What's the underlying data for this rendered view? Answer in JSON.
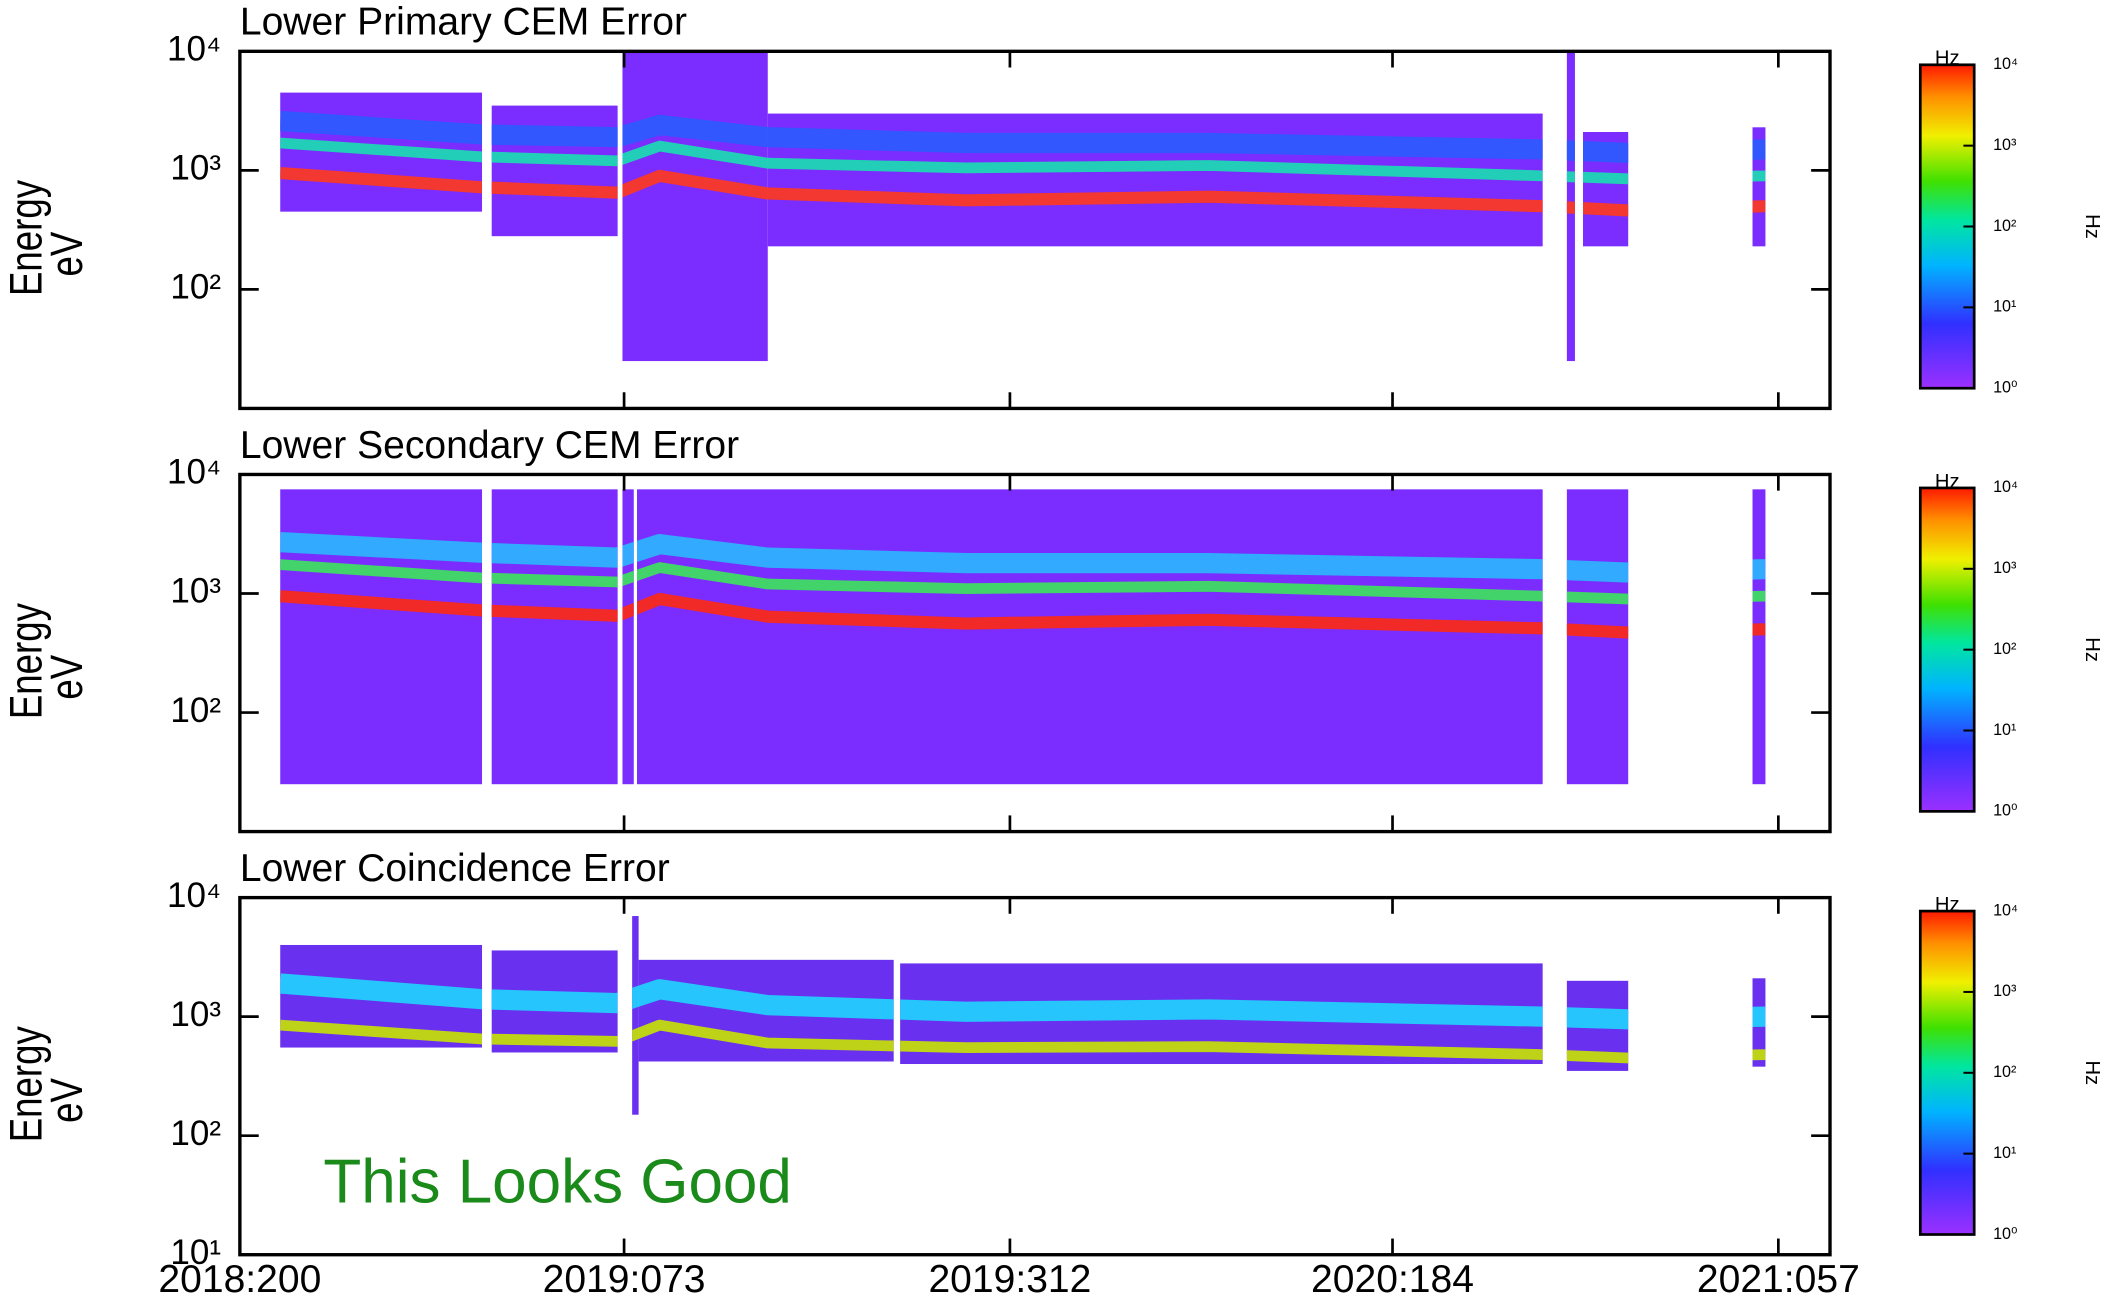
{
  "chart_data": [
    {
      "type": "spectrogram",
      "title": "Lower Primary CEM Error",
      "ylabel": "Energy",
      "yunit": "eV",
      "log_y": true,
      "xlim": [
        0,
        985
      ],
      "ylim": [
        10,
        10000
      ],
      "xticks": [
        0,
        238,
        477,
        714,
        953
      ],
      "yticks": [
        {
          "value": 100,
          "label": "10²"
        },
        {
          "value": 1000,
          "label": "10³"
        },
        {
          "value": 10000,
          "label": "10⁴"
        }
      ],
      "fill_color": "#7b2cff",
      "segments": [
        [
          25,
          150,
          450,
          4500
        ],
        [
          156,
          234,
          280,
          3500
        ],
        [
          237,
          327,
          25,
          10000
        ],
        [
          327,
          807,
          230,
          3000
        ],
        [
          822,
          827,
          25,
          10000
        ],
        [
          832,
          860,
          230,
          2100
        ],
        [
          937,
          945,
          230,
          2300
        ]
      ],
      "bands": [
        {
          "color": "#2a5cff",
          "x": [
            25,
            150,
            234,
            260,
            327,
            450,
            600,
            807,
            860,
            945
          ],
          "values": [
            2600,
            2000,
            1900,
            2400,
            1900,
            1700,
            1700,
            1500,
            1400,
            1500
          ]
        },
        {
          "color": "#19e0b0",
          "x": [
            25,
            150,
            234,
            260,
            327,
            450,
            600,
            807,
            860,
            945
          ],
          "values": [
            1700,
            1300,
            1200,
            1600,
            1150,
            1050,
            1100,
            900,
            850,
            900
          ]
        },
        {
          "color": "#ff3a1a",
          "x": [
            25,
            150,
            234,
            260,
            327,
            450,
            600,
            807,
            860,
            945
          ],
          "values": [
            950,
            720,
            650,
            900,
            640,
            560,
            600,
            500,
            460,
            500
          ]
        }
      ],
      "colorbar": {
        "label": "Hz",
        "side_label": "Hz",
        "lim": [
          1,
          10000
        ],
        "ticks": [
          {
            "value": 1,
            "label": "10⁰"
          },
          {
            "value": 10,
            "label": "10¹"
          },
          {
            "value": 100,
            "label": "10²"
          },
          {
            "value": 1000,
            "label": "10³"
          },
          {
            "value": 10000,
            "label": "10⁴"
          }
        ]
      }
    },
    {
      "type": "spectrogram",
      "title": "Lower Secondary CEM Error",
      "ylabel": "Energy",
      "yunit": "eV",
      "log_y": true,
      "xlim": [
        0,
        985
      ],
      "ylim": [
        10,
        10000
      ],
      "xticks": [
        0,
        238,
        477,
        714,
        953
      ],
      "yticks": [
        {
          "value": 100,
          "label": "10²"
        },
        {
          "value": 1000,
          "label": "10³"
        },
        {
          "value": 10000,
          "label": "10⁴"
        }
      ],
      "fill_color": "#7b2cff",
      "segments": [
        [
          25,
          150,
          25,
          7500
        ],
        [
          156,
          234,
          25,
          7500
        ],
        [
          237,
          244,
          25,
          7500
        ],
        [
          246,
          807,
          25,
          7500
        ],
        [
          822,
          860,
          25,
          7500
        ],
        [
          937,
          945,
          25,
          7500
        ]
      ],
      "bands": [
        {
          "color": "#29b8ff",
          "x": [
            25,
            150,
            234,
            260,
            327,
            450,
            600,
            807,
            860,
            945
          ],
          "values": [
            2700,
            2200,
            2000,
            2600,
            2000,
            1800,
            1800,
            1600,
            1500,
            1600
          ]
        },
        {
          "color": "#3ce65a",
          "x": [
            25,
            150,
            234,
            260,
            327,
            450,
            600,
            807,
            860,
            945
          ],
          "values": [
            1750,
            1350,
            1250,
            1650,
            1200,
            1100,
            1150,
            950,
            900,
            950
          ]
        },
        {
          "color": "#ff2a10",
          "x": [
            25,
            150,
            234,
            260,
            327,
            450,
            600,
            807,
            860,
            945
          ],
          "values": [
            950,
            720,
            650,
            900,
            640,
            560,
            600,
            510,
            470,
            500
          ]
        }
      ],
      "colorbar": {
        "label": "Hz",
        "side_label": "Hz",
        "lim": [
          1,
          10000
        ],
        "ticks": [
          {
            "value": 1,
            "label": "10⁰"
          },
          {
            "value": 10,
            "label": "10¹"
          },
          {
            "value": 100,
            "label": "10²"
          },
          {
            "value": 1000,
            "label": "10³"
          },
          {
            "value": 10000,
            "label": "10⁴"
          }
        ]
      }
    },
    {
      "type": "spectrogram",
      "title": "Lower Coincidence Error",
      "ylabel": "Energy",
      "yunit": "eV",
      "log_y": true,
      "xlim": [
        0,
        985
      ],
      "ylim": [
        10,
        10000
      ],
      "xticks": [
        {
          "value": 0,
          "label": "2018:200"
        },
        {
          "value": 238,
          "label": "2019:073"
        },
        {
          "value": 477,
          "label": "2019:312"
        },
        {
          "value": 714,
          "label": "2020:184"
        },
        {
          "value": 953,
          "label": "2021:057"
        }
      ],
      "yticks": [
        {
          "value": 10,
          "label": "10¹"
        },
        {
          "value": 100,
          "label": "10²"
        },
        {
          "value": 1000,
          "label": "10³"
        },
        {
          "value": 10000,
          "label": "10⁴"
        }
      ],
      "fill_color": "#6a30f0",
      "segments": [
        [
          25,
          150,
          550,
          4000
        ],
        [
          156,
          234,
          500,
          3600
        ],
        [
          243,
          247,
          150,
          7000
        ],
        [
          247,
          405,
          420,
          3000
        ],
        [
          409,
          807,
          400,
          2800
        ],
        [
          822,
          860,
          350,
          2000
        ],
        [
          937,
          945,
          380,
          2100
        ]
      ],
      "bands": [
        {
          "color": "#1fd6ff",
          "x": [
            25,
            150,
            234,
            260,
            327,
            450,
            600,
            807,
            860,
            945
          ],
          "values": [
            1900,
            1400,
            1300,
            1700,
            1250,
            1100,
            1150,
            1000,
            950,
            1000
          ]
        },
        {
          "color": "#c8e600",
          "x": [
            25,
            150,
            234,
            260,
            327,
            450,
            600,
            807,
            860,
            945
          ],
          "values": [
            850,
            650,
            620,
            850,
            600,
            550,
            560,
            480,
            450,
            480
          ]
        }
      ],
      "annotation": "This Looks Good",
      "colorbar": {
        "label": "Hz",
        "side_label": "Hz",
        "lim": [
          1,
          10000
        ],
        "ticks": [
          {
            "value": 1,
            "label": "10⁰"
          },
          {
            "value": 10,
            "label": "10¹"
          },
          {
            "value": 100,
            "label": "10²"
          },
          {
            "value": 1000,
            "label": "10³"
          },
          {
            "value": 10000,
            "label": "10⁴"
          }
        ]
      }
    }
  ]
}
